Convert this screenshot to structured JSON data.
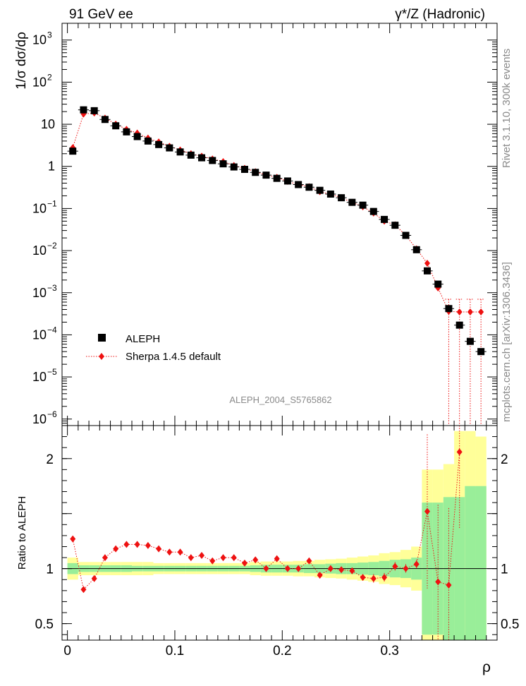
{
  "header": {
    "left": "91 GeV ee",
    "right": "γ*/Z (Hadronic)"
  },
  "side_labels": {
    "top": "Rivet 3.1.10,  300k events",
    "bottom": "mcplots.cern.ch [arXiv:1306.3436]"
  },
  "analysis_label": "ALEPH_2004_S5765862",
  "colors": {
    "data": "#000000",
    "mc": "#ee1111",
    "band_inner": "#99ee99",
    "band_outer": "#ffff99"
  },
  "chart_data": [
    {
      "type": "scatter",
      "yscale": "log",
      "ylabel": "1/σ  dσ/dρ",
      "xlim": [
        -0.005,
        0.4
      ],
      "ylim": [
        7e-07,
        2500
      ],
      "y_ticks": [
        {
          "v": 1e-06,
          "label": "10",
          "exp": "−6"
        },
        {
          "v": 1e-05,
          "label": "10",
          "exp": "−5"
        },
        {
          "v": 0.0001,
          "label": "10",
          "exp": "−4"
        },
        {
          "v": 0.001,
          "label": "10",
          "exp": "−3"
        },
        {
          "v": 0.01,
          "label": "10",
          "exp": "−2"
        },
        {
          "v": 0.1,
          "label": "10",
          "exp": "−1"
        },
        {
          "v": 1,
          "label": "1",
          "exp": ""
        },
        {
          "v": 10,
          "label": "10",
          "exp": ""
        },
        {
          "v": 100,
          "label": "10",
          "exp": "2"
        },
        {
          "v": 1000,
          "label": "10",
          "exp": "3"
        }
      ],
      "legend": {
        "position": "bottom-left",
        "entries": [
          "ALEPH",
          "Sherpa 1.4.5 default"
        ]
      },
      "x": [
        0.005,
        0.015,
        0.025,
        0.035,
        0.045,
        0.055,
        0.065,
        0.075,
        0.085,
        0.095,
        0.105,
        0.115,
        0.125,
        0.135,
        0.145,
        0.155,
        0.165,
        0.175,
        0.185,
        0.195,
        0.205,
        0.215,
        0.225,
        0.235,
        0.245,
        0.255,
        0.265,
        0.275,
        0.285,
        0.295,
        0.305,
        0.315,
        0.325,
        0.335,
        0.345,
        0.355,
        0.365,
        0.375,
        0.385
      ],
      "series": [
        {
          "name": "ALEPH",
          "values": [
            2.3,
            22,
            21,
            13,
            9.2,
            6.6,
            5.1,
            4.0,
            3.3,
            2.75,
            2.2,
            1.85,
            1.6,
            1.38,
            1.15,
            0.97,
            0.85,
            0.72,
            0.62,
            0.52,
            0.45,
            0.37,
            0.32,
            0.27,
            0.22,
            0.18,
            0.14,
            0.12,
            0.085,
            0.055,
            0.04,
            0.023,
            0.0105,
            0.0033,
            0.0016,
            0.00042,
            0.00017,
            7e-05,
            4e-05
          ]
        },
        {
          "name": "Sherpa 1.4.5 default",
          "values": [
            2.8,
            17.5,
            18.5,
            14.0,
            10.1,
            7.6,
            6.2,
            4.7,
            3.8,
            3.0,
            2.45,
            2.0,
            1.75,
            1.5,
            1.3,
            1.05,
            0.9,
            0.75,
            0.62,
            0.55,
            0.44,
            0.37,
            0.33,
            0.25,
            0.22,
            0.18,
            0.14,
            0.11,
            0.078,
            0.05,
            0.041,
            0.023,
            0.011,
            0.005,
            0.0013,
            0.00036,
            0.00035,
            0.00035,
            0.00035
          ]
        }
      ]
    },
    {
      "type": "scatter",
      "ylabel": "Ratio to ALEPH",
      "xlabel": "ρ",
      "xlim": [
        -0.005,
        0.4
      ],
      "ylim": [
        0.35,
        2.3
      ],
      "x_ticks": [
        {
          "v": 0,
          "label": "0"
        },
        {
          "v": 0.1,
          "label": "0.1"
        },
        {
          "v": 0.2,
          "label": "0.2"
        },
        {
          "v": 0.3,
          "label": "0.3"
        }
      ],
      "y_ticks": [
        {
          "v": 0.5,
          "label": "0.5"
        },
        {
          "v": 1,
          "label": "1"
        },
        {
          "v": 2,
          "label": "2"
        }
      ],
      "ratio_values": [
        1.27,
        0.81,
        0.91,
        1.1,
        1.18,
        1.22,
        1.22,
        1.21,
        1.18,
        1.15,
        1.15,
        1.1,
        1.12,
        1.07,
        1.1,
        1.1,
        1.05,
        1.08,
        1.0,
        1.09,
        1.0,
        1.0,
        1.07,
        0.94,
        1.0,
        0.99,
        0.98,
        0.92,
        0.91,
        0.92,
        1.02,
        1.0,
        1.04,
        1.52,
        0.88,
        0.85,
        2.06
      ],
      "band_inner_halfwidth": [
        0.05,
        0.03,
        0.03,
        0.03,
        0.03,
        0.03,
        0.025,
        0.025,
        0.025,
        0.025,
        0.025,
        0.025,
        0.025,
        0.025,
        0.025,
        0.025,
        0.025,
        0.03,
        0.035,
        0.035,
        0.035,
        0.035,
        0.04,
        0.04,
        0.045,
        0.05,
        0.05,
        0.055,
        0.06,
        0.07,
        0.08,
        0.085,
        0.1,
        0.6,
        0.6,
        0.65,
        0.65,
        0.75,
        0.75
      ],
      "band_outer_halfwidth": [
        0.1,
        0.06,
        0.06,
        0.06,
        0.06,
        0.06,
        0.06,
        0.06,
        0.05,
        0.05,
        0.05,
        0.05,
        0.05,
        0.05,
        0.05,
        0.05,
        0.05,
        0.06,
        0.065,
        0.065,
        0.065,
        0.07,
        0.07,
        0.08,
        0.085,
        0.09,
        0.1,
        0.11,
        0.12,
        0.14,
        0.15,
        0.17,
        0.2,
        0.9,
        0.9,
        0.95,
        1.25,
        1.25,
        1.2
      ]
    }
  ]
}
